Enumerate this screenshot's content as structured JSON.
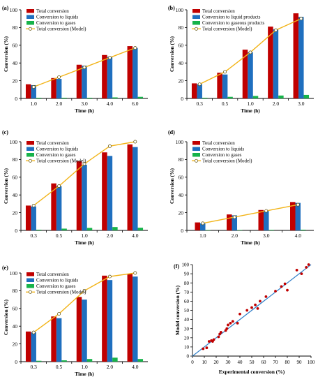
{
  "colors": {
    "total": "#c00000",
    "liquids": "#1f6fbf",
    "gases": "#17b34a",
    "model": "#f2b418",
    "fit": "#2e7ec8",
    "points": "#c00000"
  },
  "chart_data": [
    {
      "type": "bar",
      "panel_label": "(a)",
      "xlabel": "Time (h)",
      "ylabel": "Conversion (%)",
      "ylim": [
        0,
        100
      ],
      "yticks": [
        0,
        20,
        40,
        60,
        80,
        100
      ],
      "categories": [
        "1.0",
        "2.0",
        "3.0",
        "4.0",
        "6.0"
      ],
      "legend_position": "top-left",
      "series": [
        {
          "name": "Total conversion",
          "values": [
            16,
            23,
            38,
            49,
            59
          ]
        },
        {
          "name": "Conversion to liquids",
          "values": [
            15,
            22,
            37,
            47,
            57
          ]
        },
        {
          "name": "Conversion to gases",
          "values": [
            0.8,
            0.8,
            0.8,
            1.2,
            1.8
          ]
        }
      ],
      "model_line": {
        "name": "Total conversion (Model)",
        "values": [
          13,
          24,
          35,
          46,
          57
        ]
      }
    },
    {
      "type": "bar",
      "panel_label": "(b)",
      "xlabel": "Time (h)",
      "ylabel": "Conversion (%)",
      "ylim": [
        0,
        100
      ],
      "yticks": [
        0,
        20,
        40,
        60,
        80,
        100
      ],
      "categories": [
        "0.3",
        "0.5",
        "1.0",
        "2.0",
        "3.0"
      ],
      "legend_position": "top-left",
      "series": [
        {
          "name": "Total conversion",
          "values": [
            17,
            29,
            55,
            81,
            96
          ]
        },
        {
          "name": "Conversion to liquid products",
          "values": [
            16,
            27,
            52,
            78,
            92
          ]
        },
        {
          "name": "Conversion to gaseous products",
          "values": [
            0.8,
            1.8,
            2.8,
            3.3,
            4.0
          ]
        }
      ],
      "model_line": {
        "name": "Total conversion (Model)",
        "values": [
          16,
          30,
          52,
          77,
          90
        ]
      }
    },
    {
      "type": "bar",
      "panel_label": "(c)",
      "xlabel": "Time (h)",
      "ylabel": "Conversion (%)",
      "ylim": [
        0,
        100
      ],
      "yticks": [
        0,
        20,
        40,
        60,
        80,
        100
      ],
      "categories": [
        "0.3",
        "0.5",
        "1.0",
        "2.0",
        "4.0"
      ],
      "legend_position": "top-left",
      "series": [
        {
          "name": "Total conversion",
          "values": [
            28,
            53,
            78,
            88,
            97
          ]
        },
        {
          "name": "Conversion to liquids",
          "values": [
            27,
            50,
            74,
            84,
            94
          ]
        },
        {
          "name": "Conversion to gases",
          "values": [
            0.8,
            2.0,
            2.8,
            3.8,
            3.0
          ]
        }
      ],
      "model_line": {
        "name": "Total conversion (Model)",
        "values": [
          28,
          50,
          75,
          95,
          100
        ]
      }
    },
    {
      "type": "bar",
      "panel_label": "(d)",
      "xlabel": "Time (h)",
      "ylabel": "Conversion (%)",
      "ylim": [
        0,
        100
      ],
      "yticks": [
        0,
        20,
        40,
        60,
        80,
        100
      ],
      "categories": [
        "1.0",
        "2.0",
        "3.0",
        "4.0"
      ],
      "legend_position": "top-left",
      "series": [
        {
          "name": "Total conversion",
          "values": [
            9,
            18,
            23,
            32
          ]
        },
        {
          "name": "Conversion to liquids",
          "values": [
            8,
            17,
            22,
            31
          ]
        },
        {
          "name": "Conversion to gases",
          "values": [
            0.5,
            0.5,
            0.6,
            0.8
          ]
        }
      ],
      "model_line": {
        "name": "Total conversion (Model)",
        "values": [
          8,
          15,
          22,
          29
        ]
      }
    },
    {
      "type": "bar",
      "panel_label": "(e)",
      "xlabel": "Time (h)",
      "ylabel": "Conversion (%)",
      "ylim": [
        0,
        100
      ],
      "yticks": [
        0,
        20,
        40,
        60,
        80,
        100
      ],
      "categories": [
        "0.3",
        "0.5",
        "1.0",
        "2.0",
        "4.0"
      ],
      "legend_position": "top-left",
      "series": [
        {
          "name": "Total conversion",
          "values": [
            34,
            51,
            73,
            97,
            99
          ]
        },
        {
          "name": "Conversion to liquids",
          "values": [
            33,
            49,
            70,
            92,
            96
          ]
        },
        {
          "name": "Conversion to gases",
          "values": [
            1.0,
            1.5,
            3.0,
            4.5,
            3.0
          ]
        }
      ],
      "model_line": {
        "name": "Total conversion (Model)",
        "values": [
          33,
          54,
          80,
          96,
          100
        ]
      }
    },
    {
      "type": "scatter",
      "panel_label": "(f)",
      "xlabel": "Experimental conversion (%)",
      "ylabel": "Model conversion (%)",
      "xlim": [
        0,
        100
      ],
      "ylim": [
        0,
        100
      ],
      "xticks": [
        0,
        10,
        20,
        30,
        40,
        50,
        60,
        70,
        80,
        90,
        100
      ],
      "yticks": [
        0,
        10,
        20,
        30,
        40,
        50,
        60,
        70,
        80,
        90,
        100
      ],
      "points": [
        [
          9,
          8
        ],
        [
          12,
          9
        ],
        [
          14,
          16
        ],
        [
          16,
          17
        ],
        [
          17,
          16
        ],
        [
          18,
          18
        ],
        [
          22,
          21
        ],
        [
          23,
          24
        ],
        [
          24,
          26
        ],
        [
          28,
          28
        ],
        [
          29,
          30
        ],
        [
          30,
          34
        ],
        [
          32,
          36
        ],
        [
          34,
          38
        ],
        [
          38,
          36
        ],
        [
          40,
          46
        ],
        [
          46,
          50
        ],
        [
          50,
          53
        ],
        [
          53,
          56
        ],
        [
          55,
          52
        ],
        [
          57,
          60
        ],
        [
          62,
          65
        ],
        [
          70,
          71
        ],
        [
          75,
          76
        ],
        [
          78,
          79
        ],
        [
          80,
          72
        ],
        [
          88,
          94
        ],
        [
          92,
          90
        ],
        [
          96,
          97
        ],
        [
          98,
          100
        ]
      ],
      "fit_line": [
        [
          0,
          0
        ],
        [
          100,
          100
        ]
      ]
    }
  ]
}
